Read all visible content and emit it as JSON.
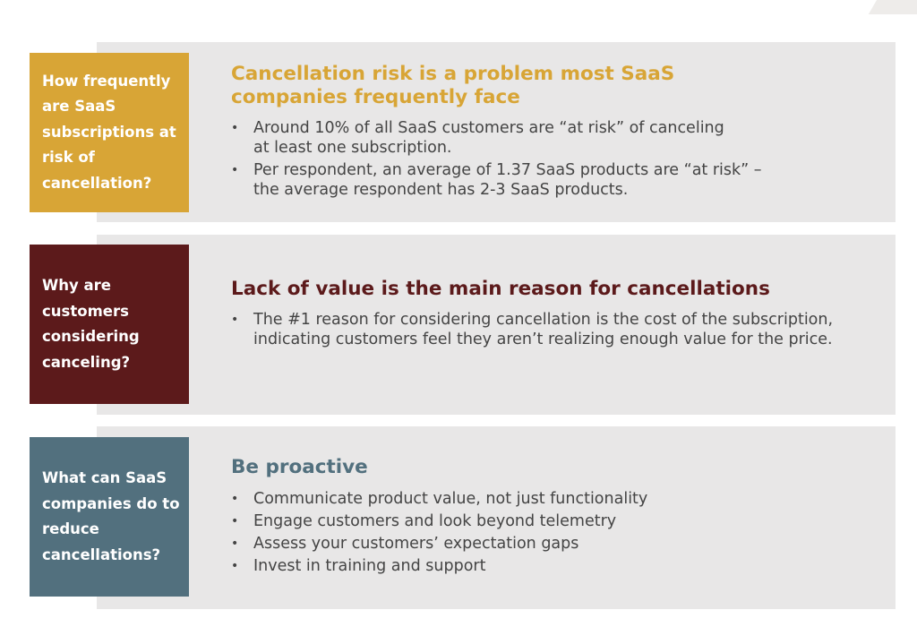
{
  "colors": {
    "gold": "#d8a536",
    "maroon": "#5c1a1b",
    "slate": "#52707e",
    "panel": "#e8e7e7"
  },
  "sections": [
    {
      "question": "How frequently are SaaS subscriptions at risk of cancellation?",
      "heading": "Cancellation risk is a problem most SaaS companies frequently face",
      "bullets": [
        "Around 10% of all SaaS customers are “at risk” of canceling at least one subscription.",
        "Per respondent, an average of 1.37 SaaS products are “at risk” – the average respondent has 2-3 SaaS products."
      ]
    },
    {
      "question": "Why are customers considering canceling?",
      "heading": "Lack of value is the main reason for cancellations",
      "bullets": [
        "The #1 reason for considering cancellation is the cost of the subscription, indicating customers feel they aren’t realizing enough value for the price."
      ]
    },
    {
      "question": "What can SaaS companies do to reduce cancellations?",
      "heading": "Be proactive",
      "bullets": [
        "Communicate product value, not just functionality",
        "Engage customers and look beyond telemetry",
        "Assess your customers’ expectation gaps",
        "Invest in training and support"
      ]
    }
  ]
}
